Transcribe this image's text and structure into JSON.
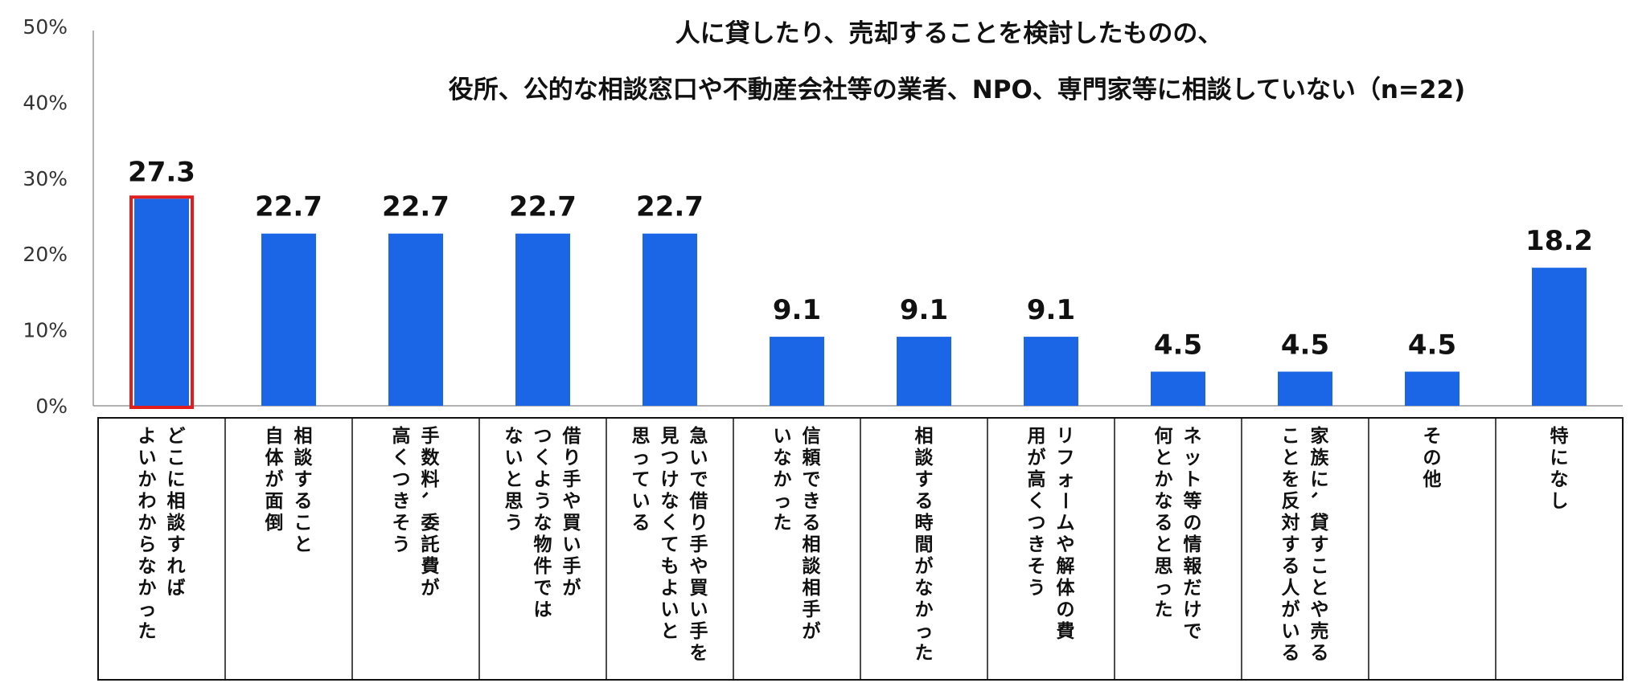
{
  "chart_data": {
    "type": "bar",
    "title_lines": [
      "人に貸したり、売却することを検討したものの、",
      "役所、公的な相談窓口や不動産会社等の業者、NPO、専門家等に相談していない（n=22)"
    ],
    "yticks": [
      "0%",
      "10%",
      "20%",
      "30%",
      "40%",
      "50%"
    ],
    "ylim": [
      0,
      50
    ],
    "categories": [
      [
        "どこに相談すれば",
        "よいかわからなかった"
      ],
      [
        "相談すること",
        "自体が面倒"
      ],
      [
        "手数料、委託費が",
        "高くつきそう"
      ],
      [
        "借り手や買い手が",
        "つくような物件では",
        "ないと思う"
      ],
      [
        "急いで借り手や買い手を",
        "見つけなくてもよいと",
        "思っている"
      ],
      [
        "信頼できる相談相手が",
        "いなかった"
      ],
      [
        "相談する時間がなかった"
      ],
      [
        "リフォームや解体の費",
        "用が高くつきそう"
      ],
      [
        "ネット等の情報だけで",
        "何とかなると思った"
      ],
      [
        "家族に、貸すことや売る",
        "ことを反対する人がいる"
      ],
      [
        "その他"
      ],
      [
        "特になし"
      ]
    ],
    "values": [
      27.3,
      22.7,
      22.7,
      22.7,
      22.7,
      9.1,
      9.1,
      9.1,
      4.5,
      4.5,
      4.5,
      18.2
    ],
    "value_labels": [
      "27.3",
      "22.7",
      "22.7",
      "22.7",
      "22.7",
      "9.1",
      "9.1",
      "9.1",
      "4.5",
      "4.5",
      "4.5",
      "18.2"
    ],
    "highlight_index": 0,
    "colors": {
      "bar": "#1a66e6",
      "highlight_border": "#e01e1e",
      "axis": "#999999",
      "table_border": "#111111"
    },
    "grid": false
  }
}
